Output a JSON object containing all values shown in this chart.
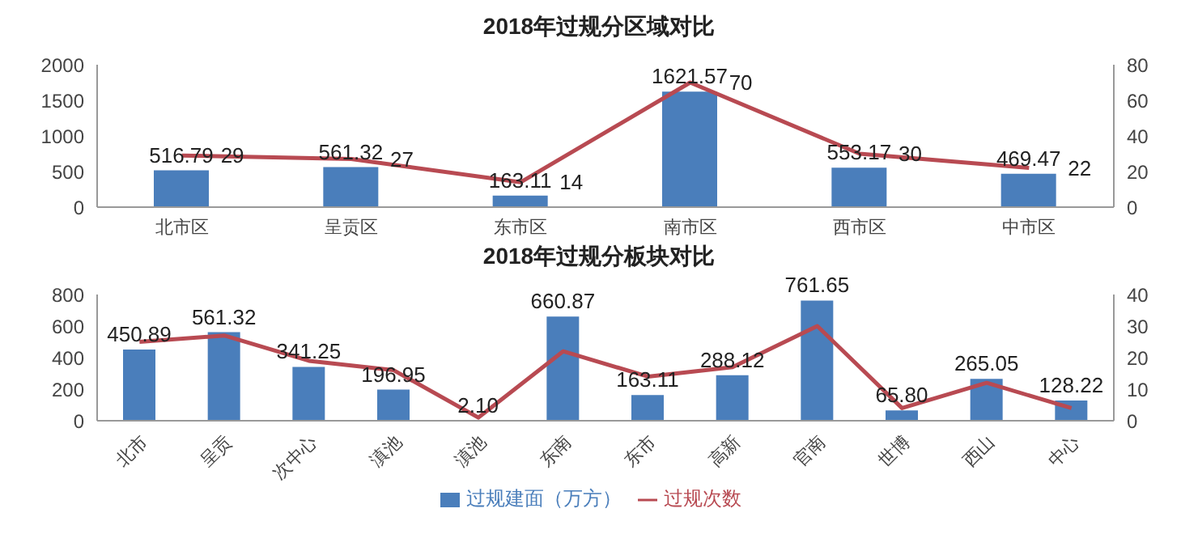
{
  "chart_data": [
    {
      "type": "bar",
      "title": "2018年过规分区域对比",
      "categories": [
        "北市区",
        "呈贡区",
        "东市区",
        "南市区",
        "西市区",
        "中市区"
      ],
      "series": [
        {
          "color": "#4a7ebb",
          "values": [
            516.79,
            561.32,
            163.11,
            1621.57,
            553.17,
            469.47
          ]
        },
        {
          "type": "line",
          "axis": "y2",
          "color": "#b84a52",
          "values": [
            29,
            27,
            14,
            70,
            30,
            22
          ]
        }
      ],
      "ylim": [
        0,
        2000
      ],
      "yticks": [
        0,
        500,
        1000,
        1500,
        2000
      ],
      "y2lim": [
        0,
        80
      ],
      "y2ticks": [
        0,
        20,
        40,
        60,
        80
      ],
      "data_labels": true,
      "grid": false,
      "legend": false
    },
    {
      "type": "bar",
      "title": "2018年过规分板块对比",
      "categories": [
        "北市",
        "呈贡",
        "次中心",
        "滇池",
        "滇池",
        "东南",
        "东市",
        "高新",
        "官南",
        "世博",
        "西山",
        "中心"
      ],
      "series": [
        {
          "name": "过规建面（万方）",
          "color": "#4a7ebb",
          "values": [
            450.89,
            561.32,
            341.25,
            196.95,
            2.1,
            660.87,
            163.11,
            288.12,
            761.65,
            65.8,
            265.05,
            128.22
          ],
          "value_labels": [
            "450.89",
            "561.32",
            "341.25",
            "196.95",
            "2.10",
            "660.87",
            "163.11",
            "288.12",
            "761.65",
            "65.80",
            "265.05",
            "128.22"
          ]
        },
        {
          "type": "line",
          "name": "过规次数",
          "axis": "y2",
          "color": "#b84a52",
          "values": [
            25,
            27,
            19,
            16,
            1,
            22,
            14,
            17,
            30,
            4,
            12,
            4
          ]
        }
      ],
      "ylim": [
        0,
        800
      ],
      "yticks": [
        0,
        200,
        400,
        600,
        800
      ],
      "y2lim": [
        0,
        40
      ],
      "y2ticks": [
        0,
        10,
        20,
        30,
        40
      ],
      "grid": false,
      "legend": "bottom"
    }
  ]
}
